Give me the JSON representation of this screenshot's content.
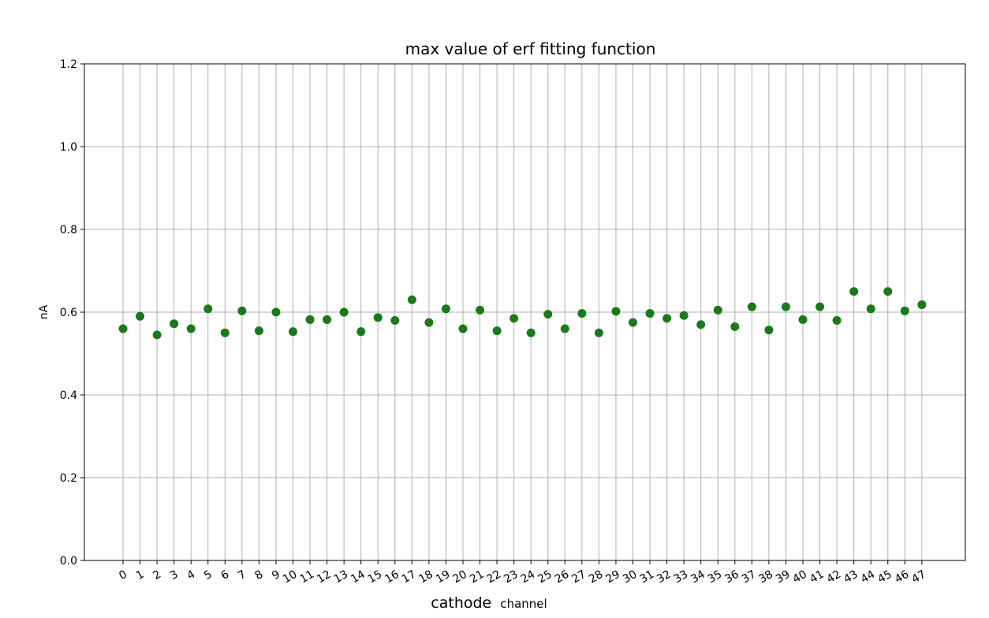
{
  "chart_data": {
    "type": "scatter",
    "title": "max value of erf fitting function",
    "xlabel_main": "cathode",
    "xlabel_sub": "channel",
    "ylabel": "nA",
    "x": [
      0,
      1,
      2,
      3,
      4,
      5,
      6,
      7,
      8,
      9,
      10,
      11,
      12,
      13,
      14,
      15,
      16,
      17,
      18,
      19,
      20,
      21,
      22,
      23,
      24,
      25,
      26,
      27,
      28,
      29,
      30,
      31,
      32,
      33,
      34,
      35,
      36,
      37,
      38,
      39,
      40,
      41,
      42,
      43,
      44,
      45,
      46,
      47
    ],
    "x_tick_labels": [
      "0",
      "1",
      "2",
      "3",
      "4",
      "5",
      "6",
      "7",
      "8",
      "9",
      "10",
      "11",
      "12",
      "13",
      "14",
      "15",
      "16",
      "17",
      "18",
      "19",
      "20",
      "21",
      "22",
      "23",
      "24",
      "25",
      "26",
      "27",
      "28",
      "29",
      "30",
      "31",
      "32",
      "33",
      "34",
      "35",
      "36",
      "37",
      "38",
      "39",
      "40",
      "41",
      "42",
      "43",
      "44",
      "45",
      "46",
      "47"
    ],
    "y": [
      0.56,
      0.59,
      0.545,
      0.572,
      0.56,
      0.608,
      0.55,
      0.603,
      0.555,
      0.6,
      0.553,
      0.582,
      0.582,
      0.6,
      0.553,
      0.587,
      0.58,
      0.63,
      0.575,
      0.608,
      0.56,
      0.605,
      0.555,
      0.585,
      0.55,
      0.595,
      0.56,
      0.597,
      0.55,
      0.602,
      0.575,
      0.597,
      0.585,
      0.592,
      0.57,
      0.605,
      0.565,
      0.613,
      0.557,
      0.613,
      0.582,
      0.613,
      0.58,
      0.65,
      0.608,
      0.65,
      0.603,
      0.618
    ],
    "ylim": [
      0.0,
      1.2
    ],
    "y_ticks": [
      0.0,
      0.2,
      0.4,
      0.6,
      0.8,
      1.0,
      1.2
    ],
    "y_tick_labels": [
      "0.0",
      "0.2",
      "0.4",
      "0.6",
      "0.8",
      "1.0",
      "1.2"
    ],
    "grid": true,
    "marker_color": "#1a7a1a",
    "grid_color": "#b0b0b0"
  }
}
